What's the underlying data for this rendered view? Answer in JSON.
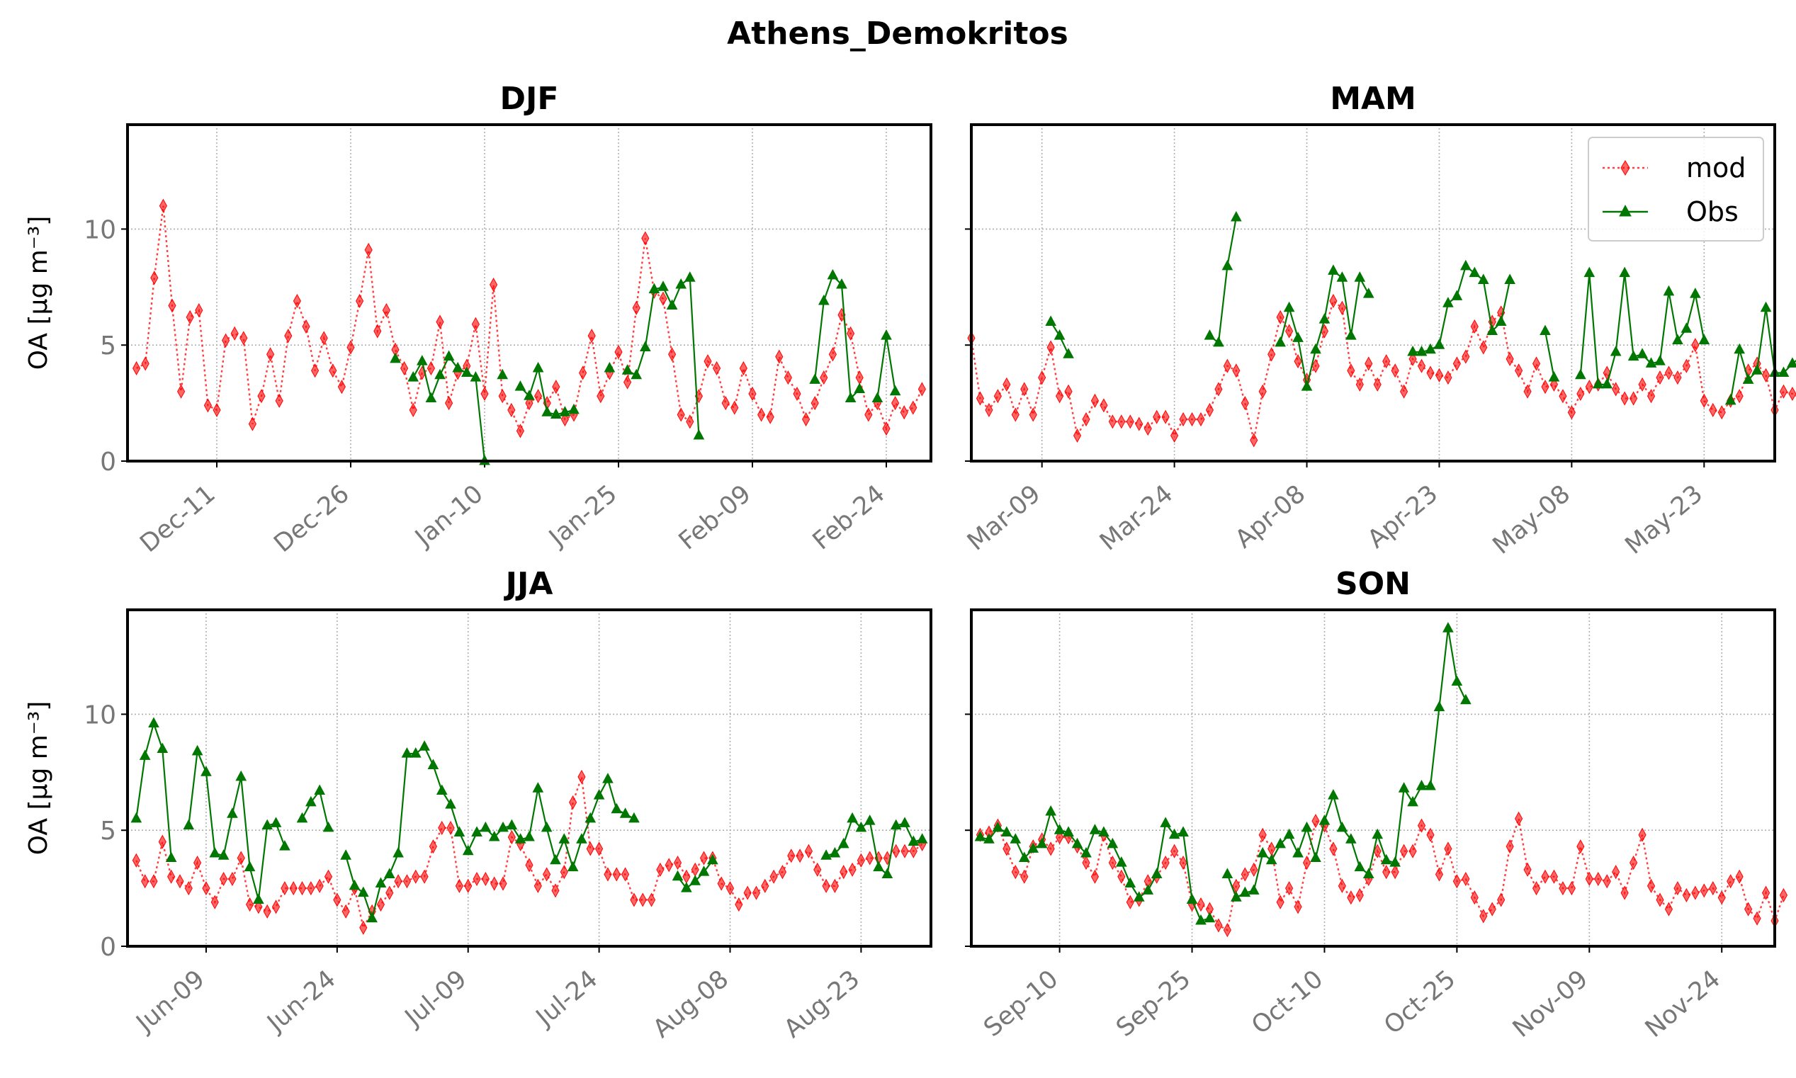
{
  "figure": {
    "title": "Athens_Demokritos"
  },
  "colors": {
    "mod": "#ff0000",
    "obs": "#007700"
  },
  "legend": {
    "entries": [
      "mod",
      "Obs"
    ],
    "position": "upper-right of MAM panel"
  },
  "chart_data": [
    {
      "type": "line",
      "title": "DJF",
      "ylabel": "OA [μg m⁻³]",
      "ylim": [
        0,
        14.5
      ],
      "xlim": [
        "2023-12-01",
        "2024-02-29"
      ],
      "grid": true,
      "yticks": [
        0,
        5,
        10
      ],
      "xticks": [
        {
          "date": "2023-12-11",
          "label": "Dec-11"
        },
        {
          "date": "2023-12-26",
          "label": "Dec-26"
        },
        {
          "date": "2024-01-10",
          "label": "Jan-10"
        },
        {
          "date": "2024-01-25",
          "label": "Jan-25"
        },
        {
          "date": "2024-02-09",
          "label": "Feb-09"
        },
        {
          "date": "2024-02-24",
          "label": "Feb-24"
        }
      ],
      "series": [
        {
          "name": "mod",
          "start": "2023-12-02",
          "values": [
            4.0,
            4.2,
            7.9,
            11.0,
            6.7,
            3.0,
            6.2,
            6.5,
            2.4,
            2.2,
            5.2,
            5.5,
            5.3,
            1.6,
            2.8,
            4.6,
            2.6,
            5.4,
            6.9,
            5.8,
            3.9,
            5.3,
            3.9,
            3.2,
            4.9,
            6.9,
            9.1,
            5.6,
            6.5,
            4.8,
            4.0,
            2.2,
            3.8,
            4.0,
            6.0,
            2.5,
            3.8,
            4.1,
            5.9,
            2.9,
            7.6,
            2.8,
            2.2,
            1.3,
            2.5,
            2.8,
            2.5,
            3.2,
            1.8,
            2.0,
            3.8,
            5.4,
            2.8,
            3.8,
            4.7,
            3.4,
            6.6,
            9.6,
            7.3,
            7.0,
            4.6,
            2.0,
            1.7,
            2.8,
            4.3,
            4.0,
            2.5,
            2.3,
            4.0,
            2.9,
            2.0,
            1.9,
            4.5,
            3.6,
            2.9,
            1.8,
            2.5,
            3.6,
            4.6,
            6.3,
            5.5,
            3.6,
            2.0,
            2.5,
            1.4,
            2.5,
            2.1,
            2.3,
            3.1
          ]
        },
        {
          "name": "Obs",
          "start": "2023-12-02",
          "values": [
            null,
            null,
            null,
            null,
            null,
            null,
            null,
            null,
            null,
            null,
            null,
            null,
            null,
            null,
            null,
            null,
            null,
            null,
            null,
            null,
            null,
            null,
            null,
            null,
            null,
            null,
            null,
            null,
            null,
            4.4,
            null,
            3.6,
            4.3,
            2.7,
            3.7,
            4.5,
            4.0,
            3.8,
            3.6,
            0.0,
            null,
            3.7,
            null,
            3.2,
            2.8,
            4.0,
            2.1,
            2.0,
            2.1,
            2.2,
            null,
            null,
            null,
            4.0,
            null,
            3.9,
            3.7,
            4.9,
            7.4,
            7.5,
            6.7,
            7.6,
            7.9,
            1.1,
            null,
            null,
            null,
            null,
            null,
            null,
            null,
            null,
            null,
            null,
            null,
            null,
            3.5,
            6.9,
            8.0,
            7.6,
            2.7,
            3.1,
            null,
            2.7,
            5.4,
            3.0,
            null,
            null
          ]
        }
      ]
    },
    {
      "type": "line",
      "title": "MAM",
      "ylabel": "",
      "ylim": [
        0,
        14.5
      ],
      "xlim": [
        "2024-03-01",
        "2024-05-31"
      ],
      "grid": true,
      "yticks": [
        0,
        5,
        10
      ],
      "xticks": [
        {
          "date": "2024-03-09",
          "label": "Mar-09"
        },
        {
          "date": "2024-03-24",
          "label": "Mar-24"
        },
        {
          "date": "2024-04-08",
          "label": "Apr-08"
        },
        {
          "date": "2024-04-23",
          "label": "Apr-23"
        },
        {
          "date": "2024-05-08",
          "label": "May-08"
        },
        {
          "date": "2024-05-23",
          "label": "May-23"
        }
      ],
      "series": [
        {
          "name": "mod",
          "start": "2024-03-01",
          "values": [
            5.3,
            2.7,
            2.2,
            2.8,
            3.3,
            2.0,
            3.1,
            2.0,
            3.6,
            4.9,
            2.8,
            3.0,
            1.1,
            1.8,
            2.6,
            2.4,
            1.7,
            1.7,
            1.7,
            1.6,
            1.4,
            1.9,
            1.9,
            1.1,
            1.8,
            1.8,
            1.8,
            2.2,
            3.1,
            4.1,
            3.9,
            2.5,
            0.9,
            3.0,
            4.6,
            6.2,
            5.6,
            4.3,
            3.5,
            4.1,
            5.6,
            6.9,
            6.6,
            3.9,
            3.3,
            4.2,
            3.3,
            4.3,
            3.9,
            3.0,
            4.4,
            4.1,
            3.8,
            3.7,
            3.6,
            4.2,
            4.5,
            5.8,
            4.9,
            6.0,
            6.4,
            4.4,
            3.9,
            3.0,
            4.2,
            3.2,
            3.3,
            2.8,
            2.1,
            2.9,
            3.2,
            3.3,
            3.8,
            3.1,
            2.7,
            2.7,
            3.3,
            2.8,
            3.6,
            3.8,
            3.6,
            4.1,
            5.0,
            2.6,
            2.2,
            2.1,
            2.6,
            2.8,
            3.9,
            4.2,
            3.7,
            2.2,
            3.0,
            2.9,
            2.7
          ]
        },
        {
          "name": "Obs",
          "start": "2024-03-01",
          "values": [
            null,
            null,
            null,
            null,
            null,
            null,
            null,
            null,
            null,
            6.0,
            5.4,
            4.6,
            null,
            null,
            null,
            null,
            null,
            null,
            null,
            null,
            null,
            null,
            null,
            null,
            null,
            null,
            null,
            5.4,
            5.1,
            8.4,
            10.5,
            null,
            null,
            null,
            null,
            5.1,
            6.6,
            5.3,
            3.2,
            4.8,
            6.1,
            8.2,
            7.9,
            5.4,
            7.9,
            7.2,
            null,
            null,
            null,
            null,
            4.7,
            4.7,
            4.8,
            5.0,
            6.8,
            7.1,
            8.4,
            8.1,
            7.8,
            5.6,
            6.0,
            7.8,
            null,
            null,
            null,
            5.6,
            3.6,
            null,
            null,
            3.7,
            8.1,
            3.3,
            3.3,
            4.7,
            8.1,
            4.5,
            4.6,
            4.2,
            4.3,
            7.3,
            5.2,
            5.7,
            7.2,
            5.2,
            null,
            null,
            2.6,
            4.8,
            3.5,
            3.9,
            6.6,
            3.8,
            3.8,
            4.2,
            4.5
          ]
        }
      ]
    },
    {
      "type": "line",
      "title": "JJA",
      "ylabel": "OA [μg m⁻³]",
      "ylim": [
        0,
        14.5
      ],
      "xlim": [
        "2024-05-31",
        "2024-08-31"
      ],
      "grid": true,
      "yticks": [
        0,
        5,
        10
      ],
      "xticks": [
        {
          "date": "2024-06-09",
          "label": "Jun-09"
        },
        {
          "date": "2024-06-24",
          "label": "Jun-24"
        },
        {
          "date": "2024-07-09",
          "label": "Jul-09"
        },
        {
          "date": "2024-07-24",
          "label": "Jul-24"
        },
        {
          "date": "2024-08-08",
          "label": "Aug-08"
        },
        {
          "date": "2024-08-23",
          "label": "Aug-23"
        }
      ],
      "series": [
        {
          "name": "mod",
          "start": "2024-06-01",
          "values": [
            3.7,
            2.8,
            2.8,
            4.5,
            3.0,
            2.8,
            2.5,
            3.6,
            2.5,
            1.9,
            2.9,
            2.9,
            3.8,
            1.8,
            1.7,
            1.5,
            1.7,
            2.5,
            2.5,
            2.5,
            2.5,
            2.6,
            3.0,
            2.0,
            1.5,
            2.5,
            0.8,
            1.5,
            1.8,
            2.3,
            2.8,
            2.8,
            3.0,
            3.0,
            4.3,
            5.1,
            5.1,
            2.6,
            2.6,
            2.9,
            2.9,
            2.7,
            2.7,
            4.7,
            4.4,
            3.5,
            2.6,
            3.1,
            2.4,
            3.2,
            6.2,
            7.3,
            4.2,
            4.2,
            3.1,
            3.1,
            3.1,
            2.0,
            2.0,
            2.0,
            3.3,
            3.5,
            3.6,
            3.0,
            3.3,
            3.8,
            3.8,
            2.7,
            2.5,
            1.8,
            2.3,
            2.3,
            2.6,
            3.0,
            3.2,
            3.9,
            3.9,
            4.1,
            3.3,
            2.6,
            2.6,
            3.2,
            3.3,
            3.7,
            3.8,
            3.8,
            3.8,
            4.1,
            4.1,
            4.1,
            4.4
          ]
        },
        {
          "name": "Obs",
          "start": "2024-06-01",
          "values": [
            5.5,
            8.2,
            9.6,
            8.5,
            3.8,
            null,
            5.2,
            8.4,
            7.5,
            4.0,
            3.9,
            5.7,
            7.3,
            3.4,
            2.0,
            5.2,
            5.3,
            4.3,
            null,
            5.5,
            6.2,
            6.7,
            5.1,
            null,
            3.9,
            2.6,
            2.3,
            1.2,
            2.7,
            3.1,
            4.0,
            8.3,
            8.3,
            8.6,
            7.8,
            6.7,
            6.1,
            4.9,
            4.1,
            4.9,
            5.1,
            4.7,
            5.1,
            5.2,
            4.6,
            4.7,
            6.8,
            5.1,
            3.7,
            4.6,
            3.4,
            4.6,
            5.5,
            6.5,
            7.2,
            5.9,
            5.7,
            5.5,
            null,
            null,
            null,
            null,
            3.0,
            2.5,
            2.8,
            3.2,
            3.7,
            null,
            null,
            null,
            null,
            null,
            null,
            null,
            null,
            null,
            null,
            null,
            null,
            3.9,
            4.0,
            4.4,
            5.5,
            5.1,
            5.4,
            3.4,
            3.1,
            5.2,
            5.3,
            4.5,
            4.6
          ]
        }
      ]
    },
    {
      "type": "line",
      "title": "SON",
      "ylabel": "",
      "ylim": [
        0,
        14.5
      ],
      "xlim": [
        "2024-08-31",
        "2024-11-30"
      ],
      "grid": true,
      "yticks": [
        0,
        5,
        10
      ],
      "xticks": [
        {
          "date": "2024-09-10",
          "label": "Sep-10"
        },
        {
          "date": "2024-09-25",
          "label": "Sep-25"
        },
        {
          "date": "2024-10-10",
          "label": "Oct-10"
        },
        {
          "date": "2024-10-25",
          "label": "Oct-25"
        },
        {
          "date": "2024-11-09",
          "label": "Nov-09"
        },
        {
          "date": "2024-11-24",
          "label": "Nov-24"
        }
      ],
      "series": [
        {
          "name": "mod",
          "start": "2024-09-01",
          "values": [
            4.8,
            4.9,
            5.2,
            4.2,
            3.2,
            3.0,
            4.3,
            4.6,
            4.2,
            4.7,
            4.7,
            4.3,
            3.6,
            3.0,
            4.8,
            3.6,
            3.0,
            1.9,
            2.0,
            2.8,
            3.0,
            3.6,
            4.1,
            3.6,
            1.8,
            1.8,
            1.6,
            0.9,
            0.7,
            2.6,
            3.1,
            3.3,
            4.8,
            4.2,
            1.9,
            2.5,
            1.7,
            3.6,
            5.4,
            5.2,
            4.2,
            2.6,
            2.1,
            2.2,
            2.9,
            4.1,
            3.2,
            3.2,
            4.1,
            4.1,
            5.2,
            4.8,
            3.1,
            4.2,
            2.8,
            2.9,
            2.1,
            1.3,
            1.6,
            2.0,
            4.3,
            5.5,
            3.3,
            2.5,
            3.0,
            3.0,
            2.5,
            2.5,
            4.3,
            2.9,
            2.9,
            2.8,
            3.2,
            2.3,
            3.6,
            4.8,
            2.6,
            2.0,
            1.6,
            2.5,
            2.2,
            2.3,
            2.4,
            2.5,
            2.1,
            2.8,
            3.0,
            1.6,
            1.2,
            2.3,
            1.1,
            2.2
          ]
        },
        {
          "name": "Obs",
          "start": "2024-09-01",
          "values": [
            4.7,
            4.6,
            5.1,
            4.9,
            4.6,
            3.8,
            4.2,
            4.4,
            5.8,
            5.0,
            4.9,
            4.4,
            4.0,
            5.0,
            4.9,
            4.4,
            3.6,
            2.7,
            2.1,
            2.4,
            3.1,
            5.3,
            4.8,
            4.9,
            2.0,
            1.1,
            1.2,
            null,
            3.1,
            2.1,
            2.3,
            2.4,
            4.0,
            3.7,
            4.4,
            4.8,
            4.0,
            5.1,
            3.8,
            5.4,
            6.5,
            5.1,
            4.6,
            3.4,
            3.1,
            4.8,
            3.7,
            3.6,
            6.8,
            6.2,
            6.9,
            6.9,
            10.3,
            13.7,
            11.4,
            10.6,
            null,
            null,
            null,
            null,
            null,
            null,
            null,
            null,
            null,
            null,
            null,
            null,
            null,
            null,
            null,
            null,
            null,
            null,
            null,
            null,
            null,
            null,
            null,
            null,
            null,
            null,
            null,
            null,
            null,
            null,
            null,
            null,
            null,
            null,
            null
          ]
        }
      ]
    }
  ]
}
